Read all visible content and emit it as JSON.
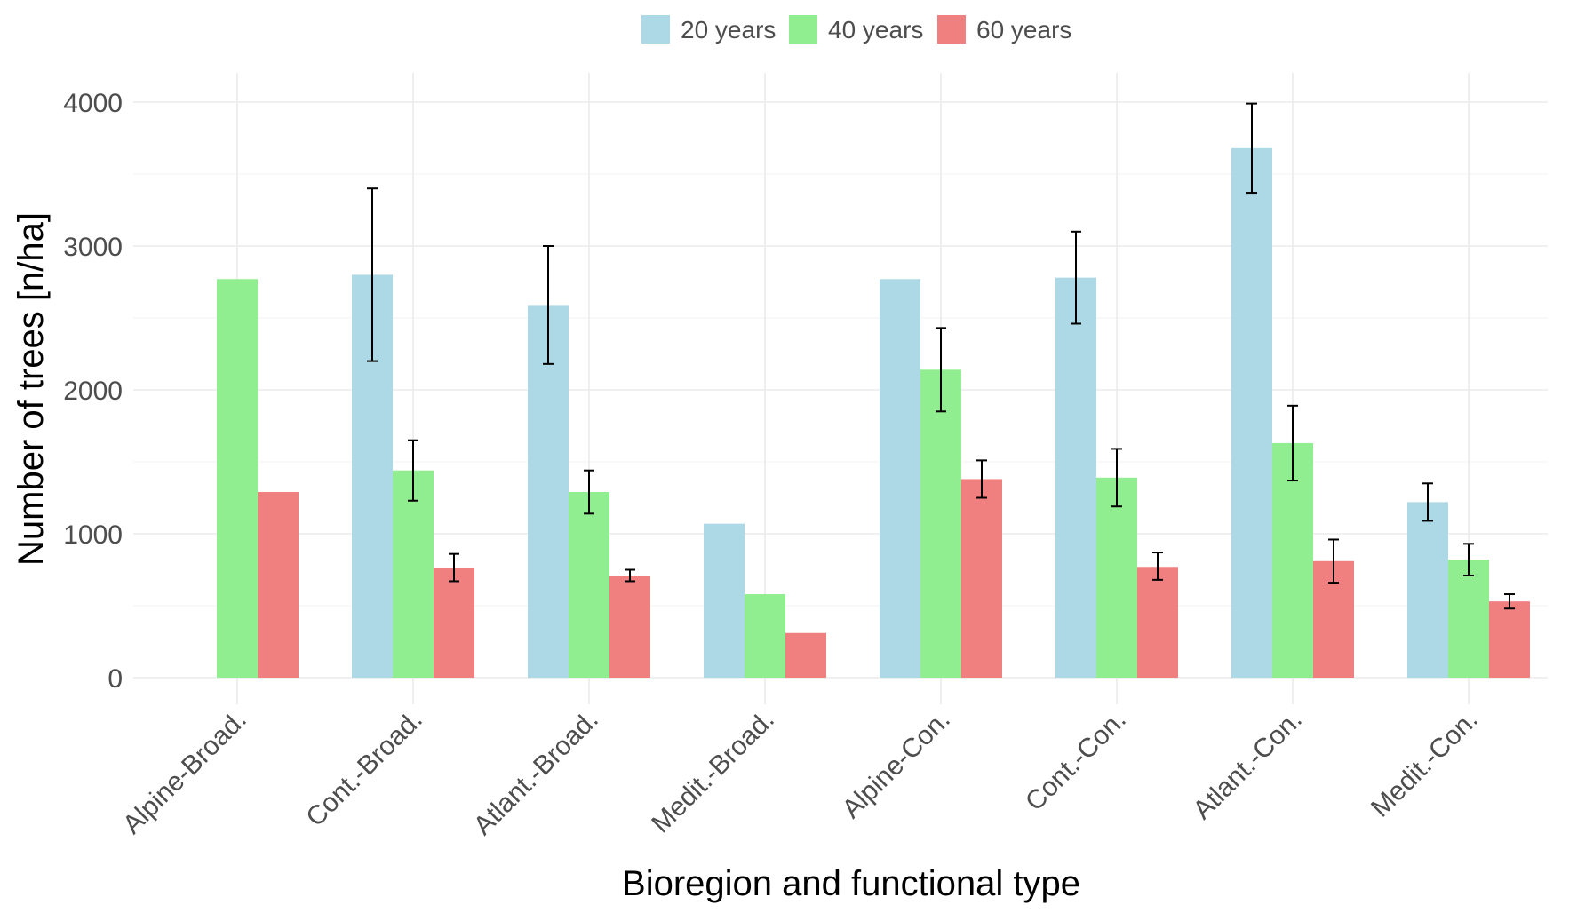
{
  "chart_data": {
    "type": "bar",
    "title": "",
    "xlabel": "Bioregion and functional type",
    "ylabel": "Number of trees [n/ha]",
    "ylim": [
      0,
      4150
    ],
    "yticks": [
      0,
      1000,
      2000,
      3000,
      4000
    ],
    "grid": true,
    "legend_position": "top",
    "categories": [
      "Alpine-Broad.",
      "Cont.-Broad.",
      "Atlant.-Broad.",
      "Medit.-Broad.",
      "Alpine-Con.",
      "Cont.-Con.",
      "Atlant.-Con.",
      "Medit.-Con."
    ],
    "series": [
      {
        "name": "20 years",
        "color": "#add8e6",
        "values": [
          null,
          2800,
          2590,
          1070,
          2770,
          2780,
          3680,
          1220
        ],
        "err_low": [
          null,
          2200,
          2180,
          null,
          null,
          2460,
          3370,
          1090
        ],
        "err_high": [
          null,
          3400,
          3000,
          null,
          null,
          3100,
          3990,
          1350
        ]
      },
      {
        "name": "40 years",
        "color": "#90ee90",
        "values": [
          2770,
          1440,
          1290,
          580,
          2140,
          1390,
          1630,
          820
        ],
        "err_low": [
          null,
          1230,
          1140,
          null,
          1850,
          1190,
          1370,
          710
        ],
        "err_high": [
          null,
          1650,
          1440,
          null,
          2430,
          1590,
          1890,
          930
        ]
      },
      {
        "name": "60 years",
        "color": "#f08080",
        "values": [
          1290,
          760,
          710,
          310,
          1380,
          770,
          810,
          530
        ],
        "err_low": [
          null,
          670,
          670,
          null,
          1250,
          680,
          660,
          480
        ],
        "err_high": [
          null,
          860,
          750,
          null,
          1510,
          870,
          960,
          580
        ]
      }
    ]
  }
}
